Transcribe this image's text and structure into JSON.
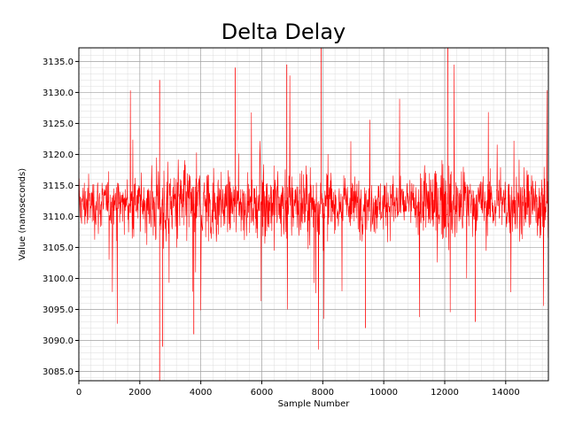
{
  "chart_data": {
    "type": "line",
    "title": "Delta Delay",
    "xlabel": "Sample Number",
    "ylabel": "Value (nanoseconds)",
    "xlim": [
      0,
      15400
    ],
    "ylim": [
      3083.5,
      3137.2
    ],
    "x_ticks": [
      0,
      2000,
      4000,
      6000,
      8000,
      10000,
      12000,
      14000
    ],
    "x_tick_labels": [
      "0",
      "2000",
      "4000",
      "6000",
      "8000",
      "10000",
      "12000",
      "14000"
    ],
    "y_ticks": [
      3085.0,
      3090.0,
      3095.0,
      3100.0,
      3105.0,
      3110.0,
      3115.0,
      3120.0,
      3125.0,
      3130.0,
      3135.0
    ],
    "y_tick_labels": [
      "3085.0",
      "3090.0",
      "3095.0",
      "3100.0",
      "3105.0",
      "3110.0",
      "3115.0",
      "3120.0",
      "3125.0",
      "3130.0",
      "3135.0"
    ],
    "grid": "major and minor",
    "legend": "none",
    "series": [
      {
        "color": "#ff0000",
        "approx_mean": 3112,
        "approx_range": [
          3083.5,
          3137.2
        ],
        "n_points": 15400,
        "sample_step": 10,
        "spikes": [
          {
            "x": 2650,
            "y": 3083.5
          },
          {
            "x": 2750,
            "y": 3089.0
          },
          {
            "x": 2650,
            "y": 3132.0
          },
          {
            "x": 3770,
            "y": 3091.0
          },
          {
            "x": 5130,
            "y": 3134.0
          },
          {
            "x": 6820,
            "y": 3134.5
          },
          {
            "x": 7950,
            "y": 3137.2
          },
          {
            "x": 9400,
            "y": 3092.0
          },
          {
            "x": 12100,
            "y": 3137.2
          },
          {
            "x": 13000,
            "y": 3093.0
          }
        ]
      }
    ]
  }
}
